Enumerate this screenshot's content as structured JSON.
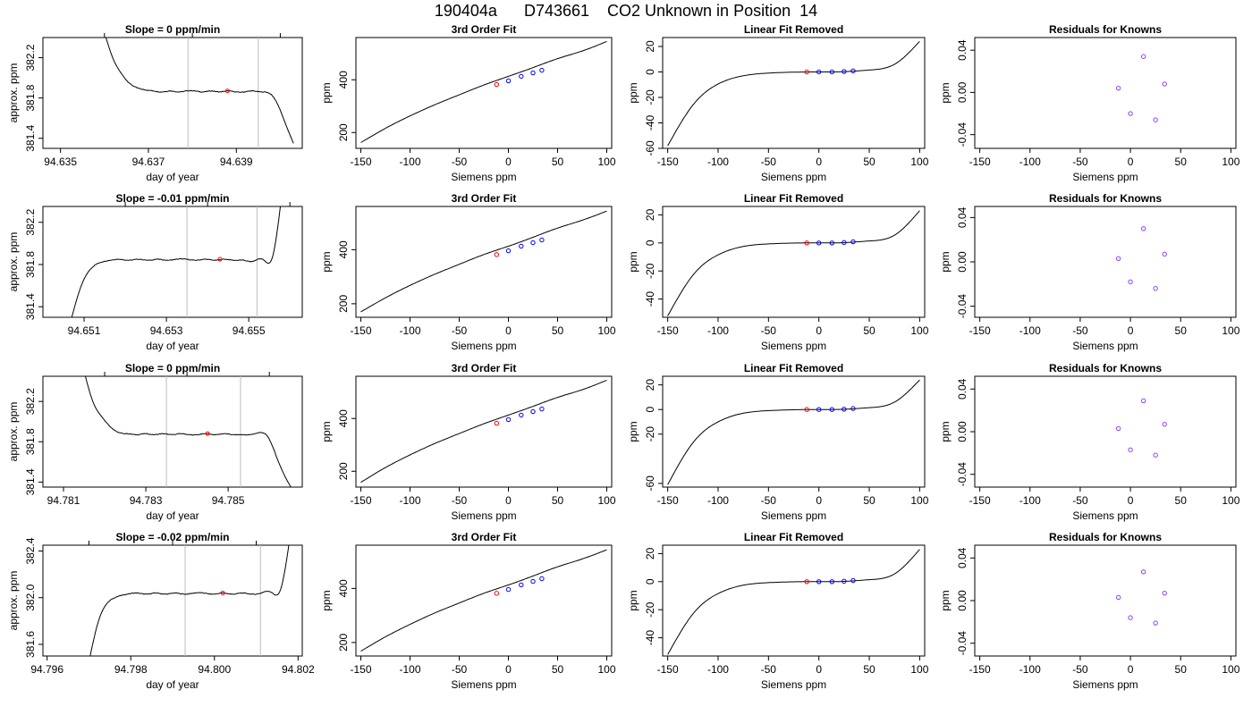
{
  "title": "190404a      D743661    CO2 Unknown in Position  14",
  "chart_data": [
    {
      "type": "line",
      "title": "Slope =  0  ppm/min",
      "xlabel": "day of year",
      "ylabel": "approx. ppm",
      "xlim": [
        94.6346,
        94.6405
      ],
      "ylim": [
        381.3,
        382.4
      ],
      "xticks": [
        94.635,
        94.637,
        94.639
      ],
      "xticklabels": [
        "94.635",
        "94.637",
        "94.639"
      ],
      "xminor": [
        94.636,
        94.638,
        94.64
      ],
      "yticks": [
        381.4,
        381.8,
        382.2
      ],
      "yticklabels": [
        "381.4",
        "381.8",
        "382.2"
      ],
      "vlines": [
        94.6379,
        94.6395
      ],
      "marker": {
        "x": 94.6388,
        "y": 381.87
      },
      "trace": {
        "x0": 94.636,
        "x1": 94.6403,
        "ys": [
          382.45,
          382.2,
          382.05,
          381.95,
          381.9,
          381.88,
          381.87,
          381.86,
          381.87,
          381.86,
          381.87,
          381.87,
          381.86,
          381.87,
          381.86,
          381.87,
          381.86,
          381.86,
          381.87,
          381.86,
          381.85,
          381.75,
          381.55,
          381.35
        ]
      }
    },
    {
      "type": "line",
      "title": "3rd Order Fit",
      "xlabel": "Siemens ppm",
      "ylabel": "ppm",
      "xlim": [
        -155,
        105
      ],
      "ylim": [
        140,
        560
      ],
      "xticks": [
        -150,
        -100,
        -50,
        0,
        50,
        100
      ],
      "xticklabels": [
        "-150",
        "-100",
        "-50",
        "0",
        "50",
        "100"
      ],
      "yticks": [
        200,
        400
      ],
      "yticklabels": [
        "200",
        "400"
      ],
      "curve": {
        "x": [
          -150,
          -125,
          -100,
          -75,
          -50,
          -25,
          0,
          25,
          50,
          75,
          100
        ],
        "y": [
          162,
          216,
          263,
          305,
          343,
          380,
          413,
          446,
          480,
          509,
          545
        ]
      },
      "points": {
        "x": [
          -12,
          0,
          13,
          25,
          34
        ],
        "y": [
          382,
          396,
          413,
          426,
          436
        ],
        "colors": [
          "#ff0000",
          "#0000ff",
          "#0000ff",
          "#0000ff",
          "#0000ff"
        ]
      }
    },
    {
      "type": "line",
      "title": "Linear Fit Removed",
      "xlabel": "Siemens ppm",
      "ylabel": "ppm",
      "xlim": [
        -155,
        105
      ],
      "ylim": [
        -60,
        27
      ],
      "xticks": [
        -150,
        -100,
        -50,
        0,
        50,
        100
      ],
      "xticklabels": [
        "-150",
        "-100",
        "-50",
        "0",
        "50",
        "100"
      ],
      "yticks": [
        -60,
        -40,
        -20,
        0,
        20
      ],
      "yticklabels": [
        "-60",
        "-40",
        "-20",
        "0",
        "20"
      ],
      "curve": {
        "x": [
          -150,
          -125,
          -100,
          -75,
          -50,
          -25,
          0,
          25,
          50,
          75,
          100
        ],
        "y": [
          -58,
          -26,
          -9.5,
          -3,
          -0.9,
          -0.2,
          0,
          0.2,
          1.5,
          6,
          24
        ]
      },
      "points": {
        "x": [
          -12,
          0,
          13,
          25,
          34
        ],
        "y": [
          0,
          0,
          0,
          0.3,
          0.8
        ],
        "colors": [
          "#ff0000",
          "#0000ff",
          "#0000ff",
          "#0000ff",
          "#0000ff"
        ]
      }
    },
    {
      "type": "scatter",
      "title": "Residuals for Knowns",
      "xlabel": "Siemens ppm",
      "ylabel": "ppm",
      "xlim": [
        -155,
        105
      ],
      "ylim": [
        -0.053,
        0.052
      ],
      "xticks": [
        -150,
        -100,
        -50,
        0,
        50,
        100
      ],
      "xticklabels": [
        "-150",
        "-100",
        "-50",
        "0",
        "50",
        "100"
      ],
      "yticks": [
        -0.04,
        0.0,
        0.04
      ],
      "yticklabels": [
        "-0.04",
        "0.00",
        "0.04"
      ],
      "points": {
        "x": [
          -12,
          0,
          13,
          25,
          34
        ],
        "y": [
          0.004,
          -0.02,
          0.034,
          -0.026,
          0.008
        ],
        "colors": [
          "#8844ff",
          "#8844ff",
          "#8844ff",
          "#8844ff",
          "#8844ff"
        ]
      }
    },
    {
      "type": "line",
      "title": "Slope =  -0.01  ppm/min",
      "xlabel": "day of year",
      "ylabel": "approx. ppm",
      "xlim": [
        94.65,
        94.6563
      ],
      "ylim": [
        381.3,
        382.35
      ],
      "xticks": [
        94.651,
        94.653,
        94.655
      ],
      "xticklabels": [
        "94.651",
        "94.653",
        "94.655"
      ],
      "xminor": [
        94.652,
        94.654,
        94.656
      ],
      "yticks": [
        381.4,
        381.8,
        382.2
      ],
      "yticklabels": [
        "381.4",
        "381.8",
        "382.2"
      ],
      "vlines": [
        94.6535,
        94.6552
      ],
      "marker": {
        "x": 94.6543,
        "y": 381.85
      },
      "trace": {
        "x0": 94.6507,
        "x1": 94.6558,
        "ys": [
          381.3,
          381.6,
          381.76,
          381.82,
          381.84,
          381.85,
          381.84,
          381.85,
          381.84,
          381.85,
          381.84,
          381.85,
          381.85,
          381.84,
          381.85,
          381.84,
          381.85,
          381.84,
          381.84,
          381.83,
          381.85,
          381.86,
          382.45
        ]
      }
    },
    {
      "type": "line",
      "title": "3rd Order Fit",
      "xlabel": "Siemens ppm",
      "ylabel": "ppm",
      "xlim": [
        -155,
        105
      ],
      "ylim": [
        150,
        560
      ],
      "xticks": [
        -150,
        -100,
        -50,
        0,
        50,
        100
      ],
      "xticklabels": [
        "-150",
        "-100",
        "-50",
        "0",
        "50",
        "100"
      ],
      "yticks": [
        200,
        400
      ],
      "yticklabels": [
        "200",
        "400"
      ],
      "curve": {
        "x": [
          -150,
          -125,
          -100,
          -75,
          -50,
          -25,
          0,
          25,
          50,
          75,
          100
        ],
        "y": [
          170,
          222,
          268,
          309,
          346,
          382,
          413,
          446,
          480,
          509,
          543
        ]
      },
      "points": {
        "x": [
          -12,
          0,
          13,
          25,
          34
        ],
        "y": [
          382,
          396,
          413,
          426,
          436
        ],
        "colors": [
          "#ff0000",
          "#0000ff",
          "#0000ff",
          "#0000ff",
          "#0000ff"
        ]
      }
    },
    {
      "type": "line",
      "title": "Linear Fit Removed",
      "xlabel": "Siemens ppm",
      "ylabel": "ppm",
      "xlim": [
        -155,
        105
      ],
      "ylim": [
        -53,
        26
      ],
      "xticks": [
        -150,
        -100,
        -50,
        0,
        50,
        100
      ],
      "xticklabels": [
        "-150",
        "-100",
        "-50",
        "0",
        "50",
        "100"
      ],
      "yticks": [
        -40,
        -20,
        0,
        20
      ],
      "yticklabels": [
        "-40",
        "-20",
        "0",
        "20"
      ],
      "curve": {
        "x": [
          -150,
          -125,
          -100,
          -75,
          -50,
          -25,
          0,
          25,
          50,
          75,
          100
        ],
        "y": [
          -52,
          -23,
          -8.5,
          -2.5,
          -0.7,
          -0.1,
          0,
          0.2,
          1.4,
          5.5,
          23
        ]
      },
      "points": {
        "x": [
          -12,
          0,
          13,
          25,
          34
        ],
        "y": [
          0,
          0,
          0,
          0.3,
          0.8
        ],
        "colors": [
          "#ff0000",
          "#0000ff",
          "#0000ff",
          "#0000ff",
          "#0000ff"
        ]
      }
    },
    {
      "type": "scatter",
      "title": "Residuals for Knowns",
      "xlabel": "Siemens ppm",
      "ylabel": "ppm",
      "xlim": [
        -155,
        105
      ],
      "ylim": [
        -0.05,
        0.05
      ],
      "xticks": [
        -150,
        -100,
        -50,
        0,
        50,
        100
      ],
      "xticklabels": [
        "-150",
        "-100",
        "-50",
        "0",
        "50",
        "100"
      ],
      "yticks": [
        -0.04,
        0.0,
        0.04
      ],
      "yticklabels": [
        "-0.04",
        "0.00",
        "0.04"
      ],
      "points": {
        "x": [
          -12,
          0,
          13,
          25,
          34
        ],
        "y": [
          0.003,
          -0.018,
          0.03,
          -0.024,
          0.007
        ],
        "colors": [
          "#8844ff",
          "#8844ff",
          "#8844ff",
          "#8844ff",
          "#8844ff"
        ]
      }
    },
    {
      "type": "line",
      "title": "Slope =  0  ppm/min",
      "xlabel": "day of year",
      "ylabel": "approx. ppm",
      "xlim": [
        94.7805,
        94.7868
      ],
      "ylim": [
        381.35,
        382.45
      ],
      "xticks": [
        94.781,
        94.783,
        94.785
      ],
      "xticklabels": [
        "94.781",
        "94.783",
        "94.785"
      ],
      "xminor": [
        94.782,
        94.784,
        94.786
      ],
      "yticks": [
        381.4,
        381.8,
        382.2
      ],
      "yticklabels": [
        "381.4",
        "381.8",
        "382.2"
      ],
      "vlines": [
        94.7835,
        94.7853
      ],
      "marker": {
        "x": 94.7845,
        "y": 381.88
      },
      "trace": {
        "x0": 94.7815,
        "x1": 94.7866,
        "ys": [
          382.5,
          382.2,
          382.05,
          381.95,
          381.89,
          381.88,
          381.87,
          381.88,
          381.87,
          381.88,
          381.87,
          381.88,
          381.87,
          381.87,
          381.88,
          381.87,
          381.88,
          381.87,
          381.87,
          381.87,
          381.89,
          381.85,
          381.65,
          381.45,
          381.3
        ]
      }
    },
    {
      "type": "line",
      "title": "3rd Order Fit",
      "xlabel": "Siemens ppm",
      "ylabel": "ppm",
      "xlim": [
        -155,
        105
      ],
      "ylim": [
        140,
        560
      ],
      "xticks": [
        -150,
        -100,
        -50,
        0,
        50,
        100
      ],
      "xticklabels": [
        "-150",
        "-100",
        "-50",
        "0",
        "50",
        "100"
      ],
      "yticks": [
        200,
        400
      ],
      "yticklabels": [
        "200",
        "400"
      ],
      "curve": {
        "x": [
          -150,
          -125,
          -100,
          -75,
          -50,
          -25,
          0,
          25,
          50,
          75,
          100
        ],
        "y": [
          158,
          214,
          262,
          305,
          343,
          380,
          413,
          446,
          480,
          509,
          545
        ]
      },
      "points": {
        "x": [
          -12,
          0,
          13,
          25,
          34
        ],
        "y": [
          382,
          396,
          413,
          426,
          436
        ],
        "colors": [
          "#ff0000",
          "#0000ff",
          "#0000ff",
          "#0000ff",
          "#0000ff"
        ]
      }
    },
    {
      "type": "line",
      "title": "Linear Fit Removed",
      "xlabel": "Siemens ppm",
      "ylabel": "ppm",
      "xlim": [
        -155,
        105
      ],
      "ylim": [
        -63,
        27
      ],
      "xticks": [
        -150,
        -100,
        -50,
        0,
        50,
        100
      ],
      "xticklabels": [
        "-150",
        "-100",
        "-50",
        "0",
        "50",
        "100"
      ],
      "yticks": [
        -60,
        -20,
        0,
        20
      ],
      "yticklabels": [
        "-60",
        "-20",
        "0",
        "20"
      ],
      "curve": {
        "x": [
          -150,
          -125,
          -100,
          -75,
          -50,
          -25,
          0,
          25,
          50,
          75,
          100
        ],
        "y": [
          -61,
          -27,
          -10,
          -3,
          -0.9,
          -0.2,
          0,
          0.2,
          1.5,
          6,
          24
        ]
      },
      "points": {
        "x": [
          -12,
          0,
          13,
          25,
          34
        ],
        "y": [
          0,
          0,
          0,
          0.3,
          0.8
        ],
        "colors": [
          "#ff0000",
          "#0000ff",
          "#0000ff",
          "#0000ff",
          "#0000ff"
        ]
      }
    },
    {
      "type": "scatter",
      "title": "Residuals for Knowns",
      "xlabel": "Siemens ppm",
      "ylabel": "ppm",
      "xlim": [
        -155,
        105
      ],
      "ylim": [
        -0.052,
        0.052
      ],
      "xticks": [
        -150,
        -100,
        -50,
        0,
        50,
        100
      ],
      "xticklabels": [
        "-150",
        "-100",
        "-50",
        "0",
        "50",
        "100"
      ],
      "yticks": [
        -0.04,
        0.0,
        0.04
      ],
      "yticklabels": [
        "-0.04",
        "0.00",
        "0.04"
      ],
      "points": {
        "x": [
          -12,
          0,
          13,
          25,
          34
        ],
        "y": [
          0.003,
          -0.017,
          0.029,
          -0.022,
          0.007
        ],
        "colors": [
          "#8844ff",
          "#8844ff",
          "#8844ff",
          "#8844ff",
          "#8844ff"
        ]
      }
    },
    {
      "type": "line",
      "title": "Slope =  -0.02  ppm/min",
      "xlabel": "day of year",
      "ylabel": "approx. ppm",
      "xlim": [
        94.7959,
        94.8021
      ],
      "ylim": [
        381.5,
        382.45
      ],
      "xticks": [
        94.796,
        94.798,
        94.8,
        94.802
      ],
      "xticklabels": [
        "94.796",
        "94.798",
        "94.800",
        "94.802"
      ],
      "xminor": [
        94.797,
        94.799,
        94.801
      ],
      "yticks": [
        381.6,
        382.0,
        382.4
      ],
      "yticklabels": [
        "381.6",
        "382.0",
        "382.4"
      ],
      "vlines": [
        94.7993,
        94.8011
      ],
      "marker": {
        "x": 94.8002,
        "y": 382.04
      },
      "trace": {
        "x0": 94.797,
        "x1": 94.8018,
        "ys": [
          381.45,
          381.8,
          381.96,
          382.01,
          382.03,
          382.04,
          382.03,
          382.04,
          382.03,
          382.04,
          382.03,
          382.04,
          382.04,
          382.03,
          382.04,
          382.03,
          382.04,
          382.03,
          382.04,
          382.05,
          382.06,
          382.5
        ]
      }
    },
    {
      "type": "line",
      "title": "3rd Order Fit",
      "xlabel": "Siemens ppm",
      "ylabel": "ppm",
      "xlim": [
        -155,
        105
      ],
      "ylim": [
        150,
        560
      ],
      "xticks": [
        -150,
        -100,
        -50,
        0,
        50,
        100
      ],
      "xticklabels": [
        "-150",
        "-100",
        "-50",
        "0",
        "50",
        "100"
      ],
      "yticks": [
        200,
        400
      ],
      "yticklabels": [
        "200",
        "400"
      ],
      "curve": {
        "x": [
          -150,
          -125,
          -100,
          -75,
          -50,
          -25,
          0,
          25,
          50,
          75,
          100
        ],
        "y": [
          168,
          221,
          267,
          309,
          346,
          382,
          413,
          446,
          480,
          509,
          543
        ]
      },
      "points": {
        "x": [
          -12,
          0,
          13,
          25,
          34
        ],
        "y": [
          382,
          396,
          413,
          426,
          436
        ],
        "colors": [
          "#ff0000",
          "#0000ff",
          "#0000ff",
          "#0000ff",
          "#0000ff"
        ]
      }
    },
    {
      "type": "line",
      "title": "Linear Fit Removed",
      "xlabel": "Siemens ppm",
      "ylabel": "ppm",
      "xlim": [
        -155,
        105
      ],
      "ylim": [
        -53,
        26
      ],
      "xticks": [
        -150,
        -100,
        -50,
        0,
        50,
        100
      ],
      "xticklabels": [
        "-150",
        "-100",
        "-50",
        "0",
        "50",
        "100"
      ],
      "yticks": [
        -40,
        -20,
        0,
        20
      ],
      "yticklabels": [
        "-40",
        "-20",
        "0",
        "20"
      ],
      "curve": {
        "x": [
          -150,
          -125,
          -100,
          -75,
          -50,
          -25,
          0,
          25,
          50,
          75,
          100
        ],
        "y": [
          -52,
          -23,
          -8.5,
          -2.5,
          -0.7,
          -0.1,
          0,
          0.2,
          1.4,
          5.5,
          23
        ]
      },
      "points": {
        "x": [
          -12,
          0,
          13,
          25,
          34
        ],
        "y": [
          0,
          0,
          0,
          0.3,
          0.8
        ],
        "colors": [
          "#ff0000",
          "#0000ff",
          "#0000ff",
          "#0000ff",
          "#0000ff"
        ]
      }
    },
    {
      "type": "scatter",
      "title": "Residuals for Knowns",
      "xlabel": "Siemens ppm",
      "ylabel": "ppm",
      "xlim": [
        -155,
        105
      ],
      "ylim": [
        -0.052,
        0.052
      ],
      "xticks": [
        -150,
        -100,
        -50,
        0,
        50,
        100
      ],
      "xticklabels": [
        "-150",
        "-100",
        "-50",
        "0",
        "50",
        "100"
      ],
      "yticks": [
        -0.04,
        0.0,
        0.04
      ],
      "yticklabels": [
        "-0.04",
        "0.00",
        "0.04"
      ],
      "points": {
        "x": [
          -12,
          0,
          13,
          25,
          34
        ],
        "y": [
          0.003,
          -0.016,
          0.027,
          -0.021,
          0.007
        ],
        "colors": [
          "#8844ff",
          "#8844ff",
          "#8844ff",
          "#8844ff",
          "#8844ff"
        ]
      }
    }
  ]
}
